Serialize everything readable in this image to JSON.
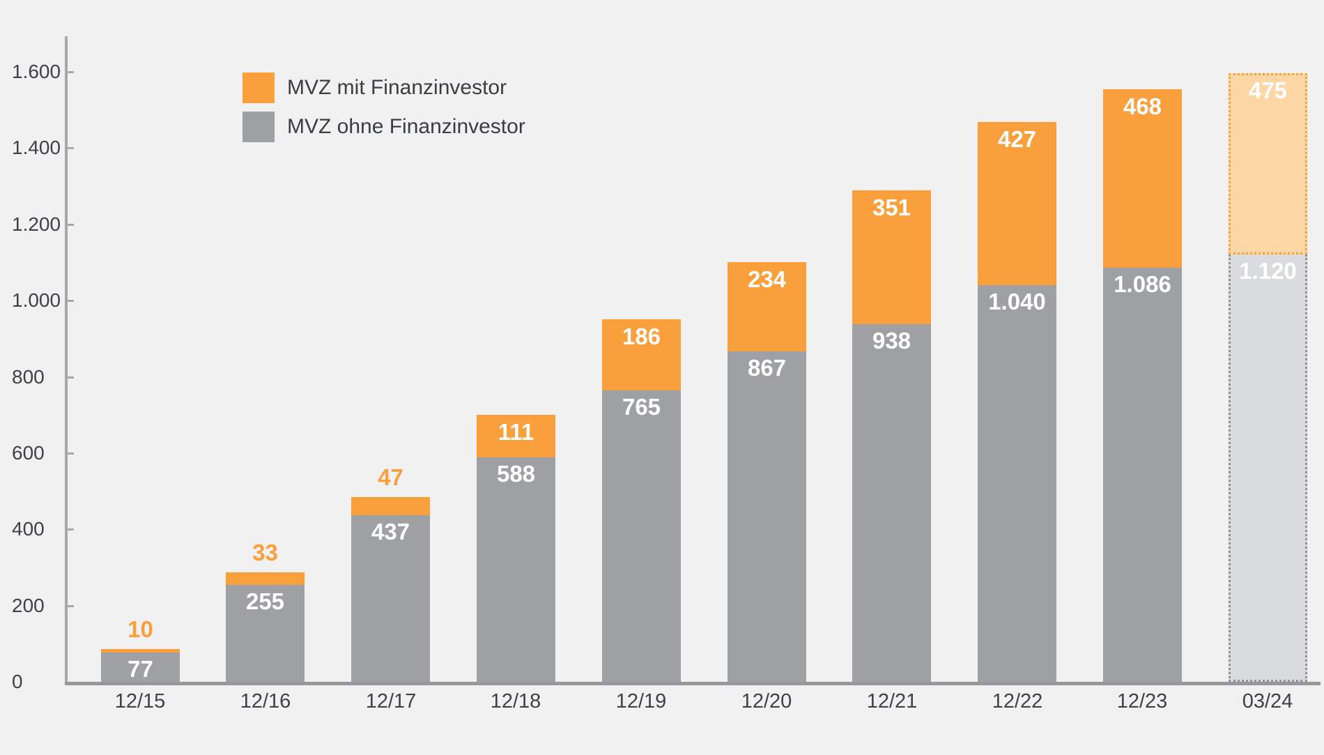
{
  "chart_data": {
    "type": "bar",
    "stacked": true,
    "title": "",
    "xlabel": "",
    "ylabel": "",
    "categories": [
      "12/15",
      "12/16",
      "12/17",
      "12/18",
      "12/19",
      "12/20",
      "12/21",
      "12/22",
      "12/23",
      "03/24"
    ],
    "series": [
      {
        "name": "MVZ ohne Finanzinvestor",
        "color": "#9ea0a4",
        "forecast_color": "#dadbdc",
        "values": [
          77,
          255,
          437,
          588,
          765,
          867,
          938,
          1040,
          1086,
          1120
        ],
        "labels": [
          "77",
          "255",
          "437",
          "588",
          "765",
          "867",
          "938",
          "1.040",
          "1.086",
          "1.120"
        ]
      },
      {
        "name": "MVZ mit Finanzinvestor",
        "color": "#f9a03c",
        "forecast_color": "#fcd6a4",
        "values": [
          10,
          33,
          47,
          111,
          186,
          234,
          351,
          427,
          468,
          475
        ],
        "labels": [
          "10",
          "33",
          "47",
          "111",
          "186",
          "234",
          "351",
          "427",
          "468",
          "475"
        ]
      }
    ],
    "ylim": [
      0,
      1600
    ],
    "ytick_labels": [
      "1.600",
      "1.400",
      "1.200",
      "1.000",
      "800",
      "600",
      "400",
      "200",
      "0"
    ],
    "grid": false,
    "legend_position": "top-left-inside",
    "forecast_category_index": 9,
    "forecast_style": "light-fill-dotted-outline"
  },
  "legend": {
    "items": [
      {
        "label": "MVZ mit Finanzinvestor",
        "color": "#f9a03c"
      },
      {
        "label": "MVZ ohne Finanzinvestor",
        "color": "#9ea0a4"
      }
    ]
  },
  "colors": {
    "background": "#f1f1f2",
    "axis": "#a7a8ab",
    "baseline": "#96979a",
    "text": "#3e4147",
    "value_text_inside": "#ffffff",
    "value_text_above": "#f9a03c"
  }
}
